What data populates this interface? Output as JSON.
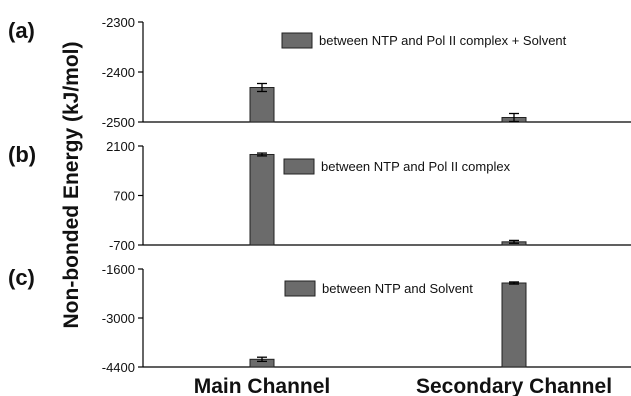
{
  "chart_data": {
    "type": "bar",
    "ylabel": "Non-bonded Energy (kJ/mol)",
    "categories": [
      "Main Channel",
      "Secondary Channel"
    ],
    "bar_color": "#6b6b6b",
    "panels": [
      {
        "label": "(a)",
        "series": [
          {
            "name": "between NTP and Pol II complex + Solvent",
            "values": [
              -2431,
              -2491
            ],
            "errors": [
              8,
              8
            ]
          }
        ],
        "ylim": [
          -2500,
          -2300
        ],
        "yticks": [
          -2300,
          -2400,
          -2500
        ],
        "ytick_labels": [
          "-2300",
          "-2400",
          "-2500"
        ]
      },
      {
        "label": "(b)",
        "series": [
          {
            "name": "between NTP and Pol II complex",
            "values": [
              1860,
              -610
            ],
            "errors": [
              40,
              40
            ]
          }
        ],
        "ylim": [
          -700,
          2100
        ],
        "yticks": [
          2100,
          700,
          -700
        ],
        "ytick_labels": [
          "2100",
          "700",
          "-700"
        ]
      },
      {
        "label": "(c)",
        "series": [
          {
            "name": "between NTP and Solvent",
            "values": [
              -4180,
              -2000
            ],
            "errors": [
              60,
              30
            ]
          }
        ],
        "ylim": [
          -4400,
          -1600
        ],
        "yticks": [
          -1600,
          -3000,
          -4400
        ],
        "ytick_labels": [
          "-1600",
          "-3000",
          "-4400"
        ]
      }
    ]
  }
}
